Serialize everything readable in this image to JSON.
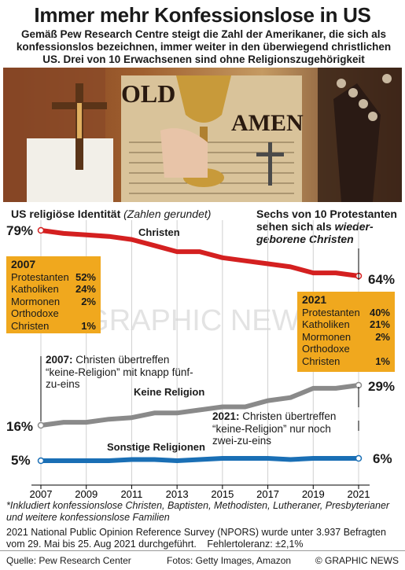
{
  "title": "Immer mehr Konfessionslose in US",
  "subtitle": "Gemäß Pew Research Centre steigt die Zahl der Amerikaner, die sich als konfessionslos bezeichnen, immer weiter in den überwiegend christlichen US. Drei von 10 Erwachsenen sind ohne Religionszugehörigkeit",
  "chart_header": {
    "bold": "US religiöse Identität",
    "italic": "(Zahlen gerundet)"
  },
  "protestant_note": {
    "text": "Sechs von 10 Protestanten sehen sich als ",
    "italic": "wieder-geborene Christen"
  },
  "box_2007": {
    "year": "2007",
    "rows": [
      {
        "label": "Protestanten",
        "value": "52%"
      },
      {
        "label": "Katholiken",
        "value": "24%"
      },
      {
        "label": "Mormonen",
        "value": "2%"
      },
      {
        "label": "Orthodoxe",
        "value": ""
      },
      {
        "label": "Christen",
        "value": "1%"
      }
    ]
  },
  "box_2021": {
    "year": "2021",
    "rows": [
      {
        "label": "Protestanten",
        "value": "40%"
      },
      {
        "label": "Katholiken",
        "value": "21%"
      },
      {
        "label": "Mormonen",
        "value": "2%"
      },
      {
        "label": "Orthodoxe",
        "value": ""
      },
      {
        "label": "Christen",
        "value": "1%"
      }
    ]
  },
  "annotation_2007": {
    "bold": "2007:",
    "text": "Christen übertreffen “keine-Religion” mit knapp fünf-zu-eins"
  },
  "annotation_2021": {
    "bold": "2021:",
    "text": "Christen übertreffen “keine-Religion” nur noch zwei-zu-eins"
  },
  "chart_data": {
    "type": "line",
    "x": [
      2007,
      2008,
      2009,
      2010,
      2011,
      2012,
      2013,
      2014,
      2015,
      2016,
      2017,
      2018,
      2019,
      2020,
      2021
    ],
    "xticks": [
      "2007",
      "2009",
      "2011",
      "2013",
      "2015",
      "2017",
      "2019",
      "2021"
    ],
    "series": [
      {
        "name": "Christen",
        "color": "#d42020",
        "start_label": "79%",
        "end_label": "64%",
        "values": [
          79,
          78,
          77.5,
          77,
          76,
          74,
          72,
          72,
          70,
          69,
          68,
          67,
          65,
          65,
          64
        ]
      },
      {
        "name": "Keine Religion",
        "color": "#8a8a8a",
        "start_label": "16%",
        "end_label": "29%",
        "values": [
          16,
          17,
          17,
          18,
          18.5,
          20,
          20,
          21,
          22,
          22,
          24,
          25,
          28,
          28,
          29
        ]
      },
      {
        "name": "Sonstige Religionen",
        "color": "#1a6fb5",
        "start_label": "5%",
        "end_label": "6%",
        "values": [
          5,
          5,
          5,
          5,
          5.5,
          5.5,
          5,
          5.5,
          6,
          6,
          6,
          5.5,
          6,
          6,
          6
        ]
      }
    ]
  },
  "footnote": "*Inkludiert konfessionslose Christen, Baptisten, Methodisten, Lutheraner, Presbyterianer und weitere konfessionslose Familien",
  "survey": "2021 National Public Opinion Reference Survey (NPORS) wurde unter 3.937 Befragten vom 29. Mai bis 25. Aug 2021 durchgeführt.",
  "error": "Fehlertoleranz: ±2,1%",
  "source": "Quelle: Pew Research Center",
  "photos": "Fotos: Getty Images, Amazon",
  "brand": "© GRAPHIC NEWS",
  "watermark": "GRAPHIC NEWS",
  "photo_text": "OLD",
  "photo_text2": "AMEN"
}
